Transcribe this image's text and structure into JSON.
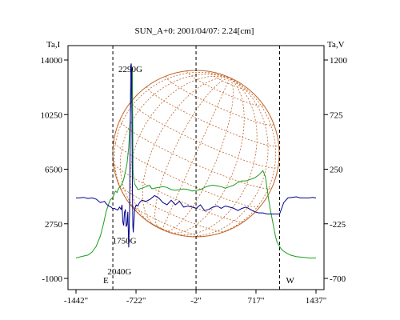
{
  "chart_data": {
    "type": "line",
    "title": "SUN_A+0: 2001/04/07: 2.24[cm]",
    "left_axis_label": "Ta,I",
    "right_axis_label": "Ta,V",
    "x_ticks": [
      "-1442\"",
      "-722\"",
      "-2\"",
      "717\"",
      "1437\""
    ],
    "x_tick_values": [
      -1442,
      -722,
      -2,
      717,
      1437
    ],
    "xlim": [
      -1442,
      1437
    ],
    "left_ticks": [
      "14000",
      "10250",
      "6500",
      "2750",
      "-1000"
    ],
    "left_tick_values": [
      14000,
      10250,
      6500,
      2750,
      -1000
    ],
    "left_ylim": [
      -1000,
      14000
    ],
    "right_ticks": [
      "1200",
      "725",
      "250",
      "-225",
      "-700"
    ],
    "right_tick_values": [
      1200,
      725,
      250,
      -225,
      -700
    ],
    "right_ylim": [
      -700,
      1200
    ],
    "limb_markers": [
      {
        "x": -1000,
        "label": "E"
      },
      {
        "x": 0,
        "label": ""
      },
      {
        "x": 1000,
        "label": "W"
      }
    ],
    "annotations": [
      {
        "text": "2290G",
        "x": -790,
        "y_left": 13400
      },
      {
        "text": "1750G",
        "x": -860,
        "y_left": 1600
      },
      {
        "text": "2040G",
        "x": -920,
        "y_left": -500
      }
    ],
    "series": [
      {
        "axis": "left",
        "color": "#1a9e1a",
        "x": [
          -1442,
          -1380,
          -1300,
          -1250,
          -1200,
          -1150,
          -1110,
          -1080,
          -1050,
          -1030,
          -1010,
          -990,
          -970,
          -950,
          -930,
          -910,
          -890,
          -870,
          -850,
          -830,
          -810,
          -790,
          -775,
          -770,
          -766,
          -762,
          -758,
          -750,
          -740,
          -720,
          -700,
          -650,
          -600,
          -560,
          -530,
          -500,
          -450,
          -400,
          -350,
          -300,
          -250,
          -200,
          -150,
          -100,
          -50,
          0,
          50,
          100,
          150,
          200,
          250,
          300,
          350,
          400,
          450,
          500,
          550,
          600,
          650,
          700,
          750,
          800,
          830,
          850,
          870,
          890,
          910,
          930,
          950,
          970,
          990,
          1010,
          1040,
          1080,
          1130,
          1200,
          1280,
          1360,
          1437
        ],
        "values": [
          400,
          500,
          600,
          800,
          1200,
          1900,
          2800,
          3600,
          4100,
          4400,
          4500,
          4700,
          5000,
          4900,
          5200,
          5300,
          5500,
          5800,
          6300,
          6900,
          8000,
          10000,
          12600,
          13300,
          13500,
          10000,
          6300,
          5900,
          5500,
          5300,
          5100,
          5200,
          5300,
          5400,
          5150,
          5200,
          5250,
          5300,
          5250,
          5100,
          5050,
          5100,
          5150,
          5100,
          5000,
          5050,
          5100,
          5250,
          5350,
          5400,
          5350,
          5300,
          5200,
          5300,
          5400,
          5600,
          5700,
          5700,
          5800,
          5900,
          6100,
          6400,
          6000,
          5200,
          4400,
          3700,
          3100,
          2500,
          1900,
          1500,
          1300,
          1100,
          900,
          750,
          600,
          500,
          450,
          400,
          400
        ]
      },
      {
        "axis": "right",
        "color": "#00008b",
        "x": [
          -1442,
          -1400,
          -1350,
          -1300,
          -1250,
          -1200,
          -1150,
          -1100,
          -1080,
          -1050,
          -1020,
          -1000,
          -980,
          -960,
          -940,
          -920,
          -900,
          -890,
          -880,
          -870,
          -860,
          -850,
          -840,
          -830,
          -820,
          -810,
          -800,
          -795,
          -790,
          -785,
          -780,
          -775,
          -770,
          -765,
          -760,
          -755,
          -750,
          -745,
          -740,
          -730,
          -720,
          -700,
          -680,
          -650,
          -600,
          -550,
          -500,
          -450,
          -400,
          -350,
          -300,
          -250,
          -200,
          -150,
          -100,
          -50,
          0,
          50,
          100,
          150,
          200,
          250,
          300,
          350,
          400,
          450,
          500,
          550,
          600,
          650,
          700,
          750,
          800,
          850,
          900,
          950,
          1000,
          1050,
          1100,
          1150,
          1200,
          1250,
          1300,
          1350,
          1400,
          1437
        ],
        "values": [
          0,
          0,
          5,
          -5,
          0,
          -10,
          -40,
          -30,
          -50,
          -70,
          -80,
          -95,
          -90,
          -100,
          -105,
          -80,
          -100,
          -60,
          -210,
          -240,
          -130,
          -100,
          -250,
          -230,
          -120,
          -430,
          -150,
          200,
          650,
          1150,
          1170,
          1120,
          650,
          100,
          -250,
          -300,
          -230,
          -180,
          -110,
          -80,
          -60,
          -70,
          -40,
          -20,
          -30,
          -10,
          20,
          0,
          -40,
          -60,
          -20,
          -60,
          -30,
          -80,
          -70,
          -80,
          -90,
          -60,
          -110,
          -100,
          -80,
          -70,
          -90,
          -70,
          -80,
          -90,
          -110,
          -90,
          -80,
          -100,
          -120,
          -130,
          -130,
          -140,
          -140,
          -140,
          -140,
          -40,
          0,
          5,
          10,
          0,
          0,
          0,
          5,
          0
        ]
      }
    ],
    "disk_color": "#c0642a"
  }
}
